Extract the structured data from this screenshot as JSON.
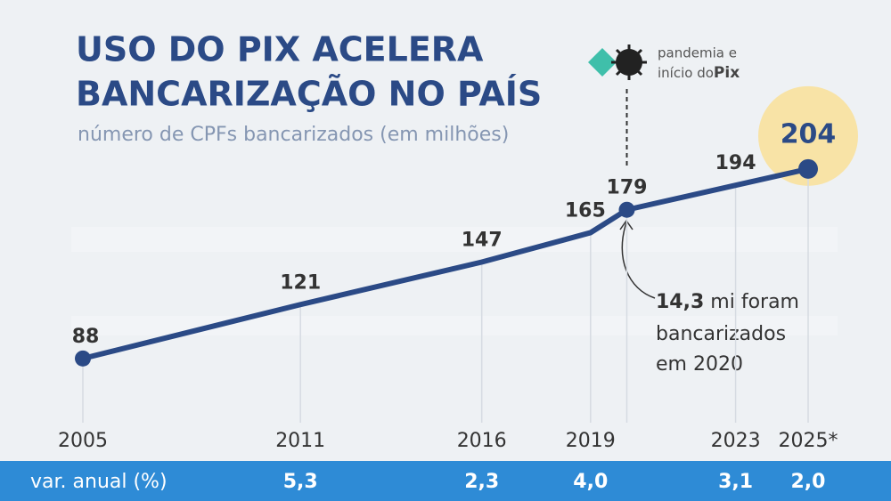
{
  "chart_data": {
    "type": "line",
    "title": [
      "USO DO PIX ACELERA",
      "BANCARIZAÇÃO NO PAÍS"
    ],
    "subtitle": "número de CPFs bancarizados (em milhões)",
    "x": [
      2005,
      2011,
      2016,
      2019,
      2020,
      2023,
      2025
    ],
    "series": [
      {
        "color": "#2b4a86",
        "values": [
          88,
          121,
          147,
          165,
          179,
          194,
          204
        ]
      }
    ],
    "xlim": [
      2005,
      2025
    ],
    "xticks": [
      2005,
      2011,
      2016,
      2019,
      2023,
      {
        "value": 2025,
        "label": "2025*"
      }
    ],
    "ylim": [
      40,
      260
    ],
    "event": {
      "x": 2020,
      "label": [
        "pandemia e",
        "início do",
        "Pix"
      ]
    },
    "annotation": {
      "bold": "14,3",
      "text": [
        "mi foram",
        "bancarizados",
        "em 2020"
      ]
    },
    "annual_change": {
      "label": "var. anual (%)",
      "x": [
        2011,
        2016,
        2019,
        2023,
        2025
      ],
      "values": [
        5.3,
        2.3,
        4.0,
        3.1,
        2.0
      ],
      "value_labels": [
        "5,3",
        "2,3",
        "4,0",
        "3,1",
        "2,0"
      ]
    }
  }
}
